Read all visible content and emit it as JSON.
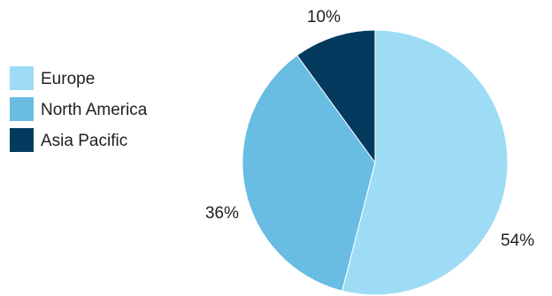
{
  "chart_data": {
    "type": "pie",
    "title": "",
    "categories": [
      "Europe",
      "North America",
      "Asia Pacific"
    ],
    "values": [
      54,
      36,
      10
    ],
    "value_labels": [
      "54%",
      "36%",
      "10%"
    ],
    "colors": [
      "#9edcf5",
      "#69bce2",
      "#033a5e"
    ],
    "legend": {
      "placement": "left",
      "entries": [
        "Europe",
        "North America",
        "Asia Pacific"
      ]
    }
  }
}
